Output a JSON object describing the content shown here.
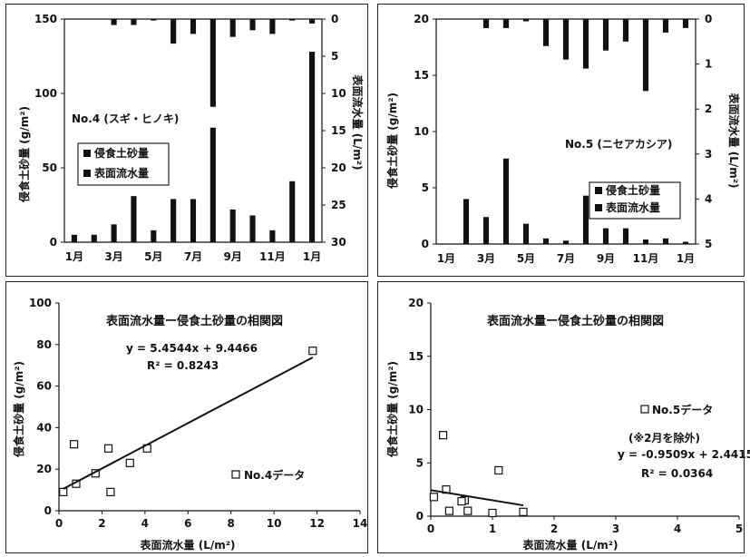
{
  "charts": {
    "p1": {
      "annotation": "No.4 (スギ・ヒノキ)",
      "xlabel": "",
      "ylabel_left": "侵食土砂量 (g/m²)",
      "ylabel_right": "表面流水量 (L/m²)",
      "legend": [
        "侵食土砂量",
        "表面流水量"
      ]
    },
    "p2": {
      "annotation": "No.5 (ニセアカシア)",
      "xlabel": "",
      "ylabel_left": "侵食土砂量 (g/m²)",
      "ylabel_right": "表面流水量 (L/m²)",
      "legend": [
        "侵食土砂量",
        "表面流水量"
      ]
    },
    "p3": {
      "title": "表面流水量ー侵食土砂量の相関図",
      "xlabel": "表面流水量 (L/m²)",
      "ylabel": "侵食土砂量 (g/m²)",
      "equation": "y = 5.4544x + 9.4466",
      "r2": "R² = 0.8243",
      "legend": "No.4データ",
      "note": ""
    },
    "p4": {
      "title": "表面流水量ー侵食土砂量の相関図",
      "xlabel": "表面流水量 (L/m²)",
      "ylabel": "侵食土砂量 (g/m²)",
      "equation": "y = -0.9509x + 2.4415",
      "r2": "R² = 0.0364",
      "legend": "No.5データ",
      "note": "(※2月を除外)"
    }
  },
  "chart_data": [
    {
      "type": "bar",
      "categories": [
        "1月",
        "2月",
        "3月",
        "4月",
        "5月",
        "6月",
        "7月",
        "8月",
        "9月",
        "10月",
        "11月",
        "12月",
        "1月"
      ],
      "tick_labels": [
        "1月",
        "3月",
        "5月",
        "7月",
        "9月",
        "11月",
        "1月"
      ],
      "series": [
        {
          "name": "侵食土砂量",
          "axis": "left",
          "values": [
            5,
            5,
            12,
            31,
            8,
            29,
            29,
            77,
            22,
            18,
            8,
            41,
            128
          ]
        },
        {
          "name": "表面流水量",
          "axis": "right",
          "inverted": true,
          "values": [
            0,
            0,
            0.8,
            0.8,
            0.2,
            3.3,
            2.0,
            11.8,
            2.4,
            1.5,
            2.0,
            0.2,
            0.6
          ]
        }
      ],
      "ylim_left": [
        0,
        150
      ],
      "yticks_left": [
        "0",
        "50",
        "100",
        "150"
      ],
      "ylim_right": [
        30,
        0
      ],
      "yticks_right": [
        "0",
        "5",
        "10",
        "15",
        "20",
        "25",
        "30"
      ]
    },
    {
      "type": "bar",
      "categories": [
        "1月",
        "2月",
        "3月",
        "4月",
        "5月",
        "6月",
        "7月",
        "8月",
        "9月",
        "10月",
        "11月",
        "12月",
        "1月"
      ],
      "tick_labels": [
        "1月",
        "3月",
        "5月",
        "7月",
        "9月",
        "11月",
        "1月"
      ],
      "series": [
        {
          "name": "侵食土砂量",
          "axis": "left",
          "values": [
            0,
            4.0,
            2.4,
            7.6,
            1.8,
            0.5,
            0.3,
            4.3,
            1.4,
            1.4,
            0.4,
            0.5,
            0.2
          ]
        },
        {
          "name": "表面流水量",
          "axis": "right",
          "inverted": true,
          "values": [
            0,
            0,
            0.2,
            0.2,
            0.05,
            0.6,
            0.9,
            1.1,
            0.7,
            0.5,
            1.6,
            0.3,
            0.2
          ]
        }
      ],
      "ylim_left": [
        0,
        20
      ],
      "yticks_left": [
        "0",
        "5",
        "10",
        "15",
        "20"
      ],
      "ylim_right": [
        5,
        0
      ],
      "yticks_right": [
        "0",
        "1",
        "2",
        "3",
        "4",
        "5"
      ]
    },
    {
      "type": "scatter",
      "xlim": [
        0,
        14
      ],
      "ylim": [
        0,
        100
      ],
      "xticks": [
        "0",
        "2",
        "4",
        "6",
        "8",
        "10",
        "12",
        "14"
      ],
      "yticks": [
        "0",
        "20",
        "40",
        "60",
        "80",
        "100"
      ],
      "points": [
        [
          0.2,
          9
        ],
        [
          0.7,
          32
        ],
        [
          0.8,
          13
        ],
        [
          1.7,
          18
        ],
        [
          2.3,
          30
        ],
        [
          2.4,
          9
        ],
        [
          3.3,
          23
        ],
        [
          4.1,
          30
        ],
        [
          11.8,
          77
        ]
      ],
      "trendline": {
        "slope": 5.4544,
        "intercept": 9.4466,
        "x_range": [
          0.2,
          11.8
        ]
      }
    },
    {
      "type": "scatter",
      "xlim": [
        0,
        5
      ],
      "ylim": [
        0,
        20
      ],
      "xticks": [
        "0",
        "1",
        "2",
        "3",
        "4",
        "5"
      ],
      "yticks": [
        "0",
        "5",
        "10",
        "15",
        "20"
      ],
      "points": [
        [
          0.05,
          1.8
        ],
        [
          0.2,
          7.6
        ],
        [
          0.25,
          2.5
        ],
        [
          0.3,
          0.5
        ],
        [
          0.5,
          1.4
        ],
        [
          0.55,
          1.5
        ],
        [
          0.6,
          0.5
        ],
        [
          1.0,
          0.3
        ],
        [
          1.1,
          4.3
        ],
        [
          1.5,
          0.4
        ]
      ],
      "trendline": {
        "slope": -0.9509,
        "intercept": 2.4415,
        "x_range": [
          0,
          1.5
        ]
      }
    }
  ]
}
